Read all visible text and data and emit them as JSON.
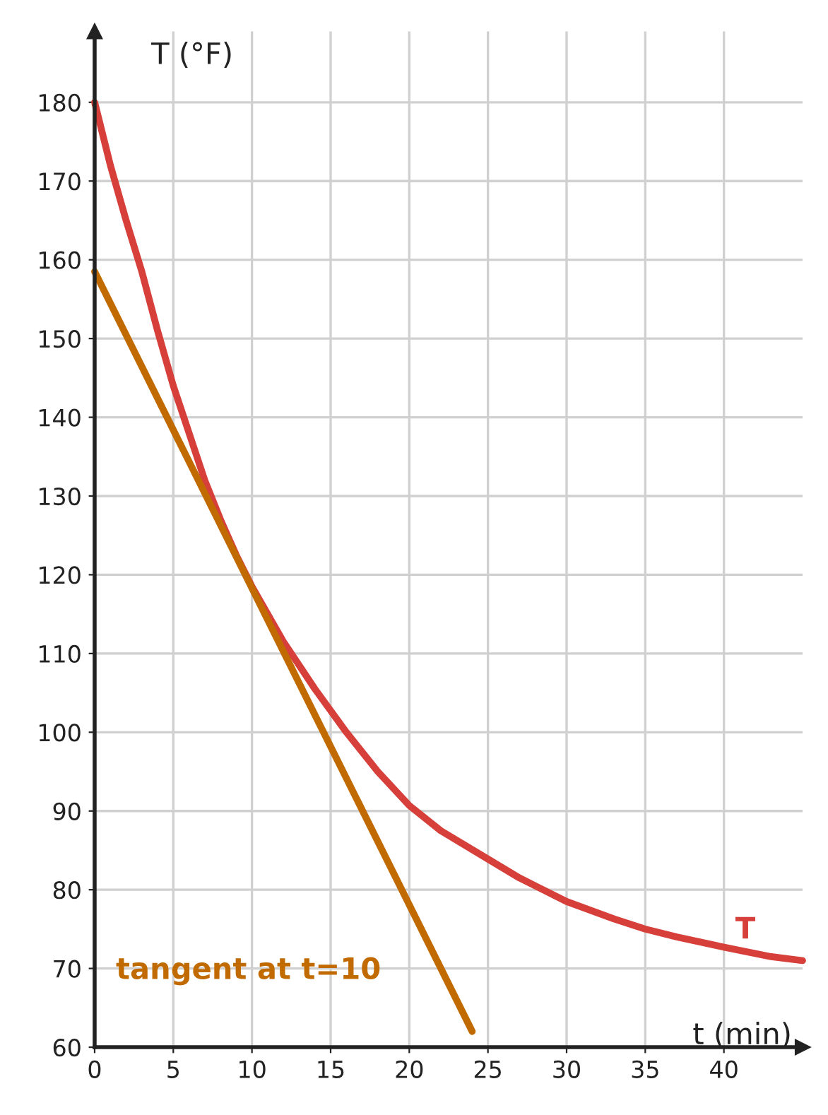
{
  "chart_data": {
    "type": "line",
    "xlabel": "t (min)",
    "ylabel": "T (°F)",
    "series": [
      {
        "name": "T",
        "color": "#d63f3a",
        "x": [
          0,
          1,
          2,
          3,
          4,
          5,
          6,
          7,
          8,
          9,
          10,
          12,
          14,
          16,
          18,
          20,
          22,
          25,
          27,
          30,
          33,
          35,
          37,
          40,
          43,
          45
        ],
        "values": [
          180,
          172,
          165,
          158.5,
          151,
          144,
          138,
          132,
          127,
          122.5,
          118.5,
          111.5,
          105.5,
          100,
          95,
          90.7,
          87.5,
          83.9,
          81.5,
          78.5,
          76.3,
          75,
          74,
          72.7,
          71.5,
          71
        ]
      },
      {
        "name": "tangent at t=10",
        "color": "#c06a00",
        "x": [
          0,
          24
        ],
        "values": [
          158.5,
          62
        ]
      }
    ],
    "xlim": [
      0,
      45
    ],
    "ylim": [
      60,
      189
    ],
    "xticks": [
      0,
      5,
      10,
      15,
      20,
      25,
      30,
      35,
      40
    ],
    "yticks": [
      60,
      70,
      80,
      90,
      100,
      110,
      120,
      130,
      140,
      150,
      160,
      170,
      180
    ],
    "grid": true,
    "marker": "none",
    "line_style": "solid"
  }
}
